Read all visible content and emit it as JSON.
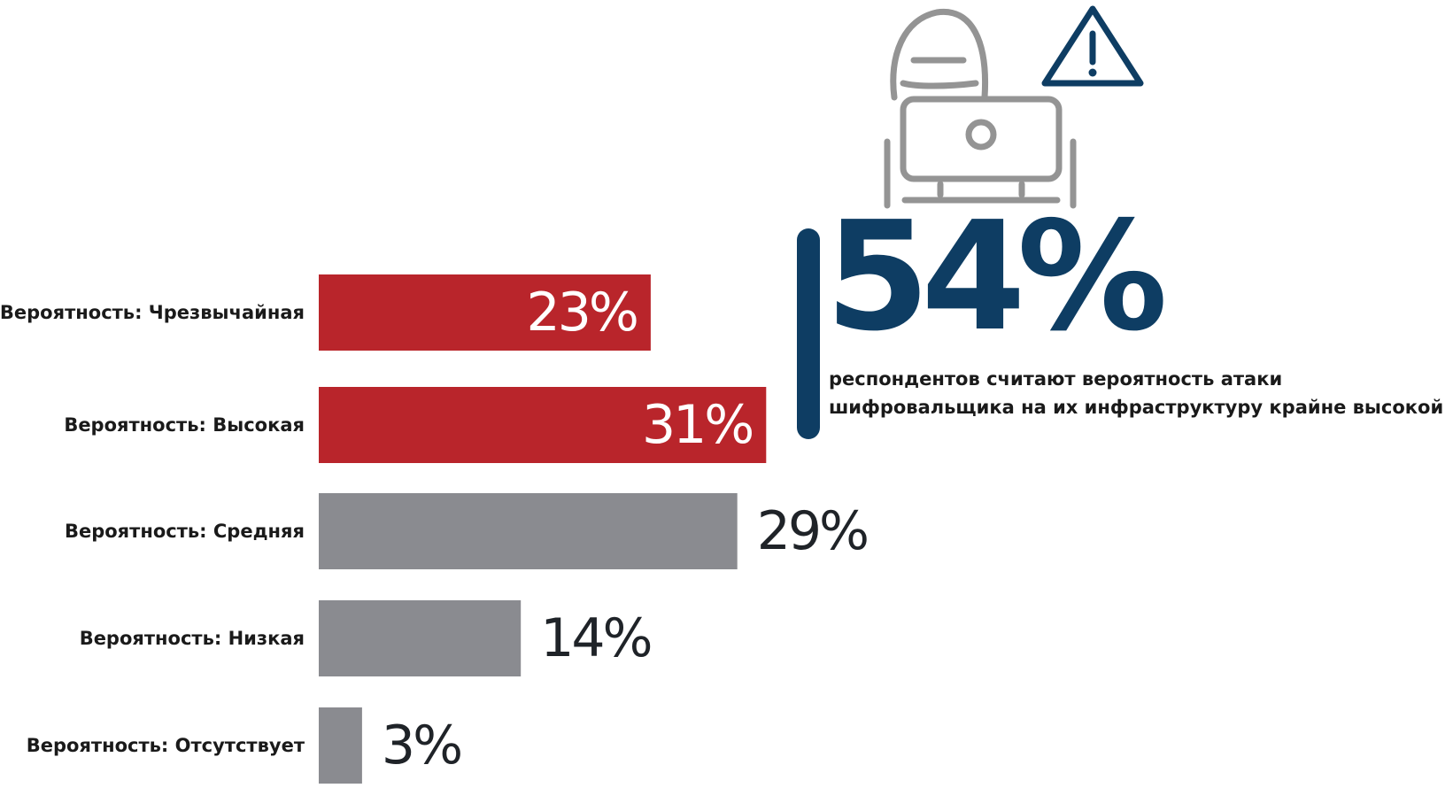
{
  "chart_data": {
    "type": "bar",
    "orientation": "horizontal",
    "title": "",
    "xlabel": "",
    "ylabel": "",
    "xlim": [
      0,
      100
    ],
    "grid": false,
    "legend": "none",
    "categories": [
      "Вероятность: Чрезвычайная",
      "Вероятность: Высокая",
      "Вероятность: Средняя",
      "Вероятность: Низкая",
      "Вероятность: Отсутствует"
    ],
    "values": [
      23,
      31,
      29,
      14,
      3
    ],
    "value_labels": [
      "23%",
      "31%",
      "29%",
      "14%",
      "3%"
    ],
    "highlighted": [
      true,
      true,
      false,
      false,
      false
    ],
    "colors": {
      "highlight": "#b9252b",
      "normal": "#8a8b90",
      "label_on_bar": "#ffffff",
      "label_outside": "#1f2328",
      "accent": "#0e3d63",
      "icon": "#949494"
    },
    "annotation": {
      "value": "54%",
      "text_lines": [
        "респондентов считают вероятность атаки",
        "шифровальщика на их инфраструктуру крайне высокой"
      ]
    },
    "icons": [
      "hacker-laptop-icon",
      "warning-triangle-icon"
    ]
  }
}
